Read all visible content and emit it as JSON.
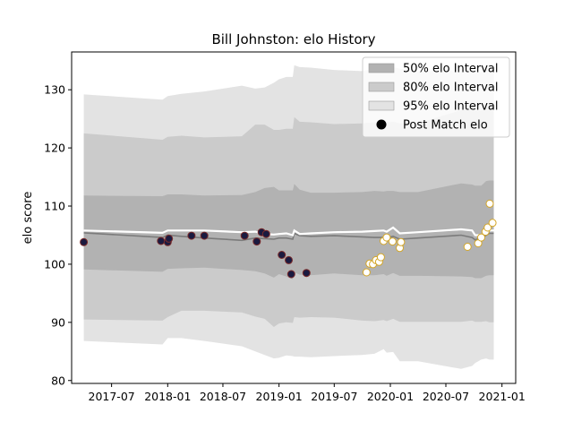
{
  "chart_data": {
    "type": "line",
    "title": "Bill Johnston: elo History",
    "xlabel": "",
    "ylabel": "elo score",
    "x_ticks": [
      "2017-07",
      "2018-01",
      "2018-07",
      "2019-01",
      "2019-07",
      "2020-01",
      "2020-07",
      "2021-01"
    ],
    "y_ticks": [
      80,
      90,
      100,
      110,
      120,
      130
    ],
    "ylim": [
      79.5,
      136.5
    ],
    "xlim": [
      "2017-02-20",
      "2021-02-15"
    ],
    "grid": false,
    "legend_position": "top-right",
    "legend": [
      {
        "label": "50% elo Interval",
        "color": "#b2b2b2"
      },
      {
        "label": "80% elo Interval",
        "color": "#cbcbcb"
      },
      {
        "label": "95% elo Interval",
        "color": "#e3e3e3"
      },
      {
        "label": "Post Match elo",
        "color": "#000000"
      }
    ],
    "bands": {
      "x": [
        "2017-04-01",
        "2017-12-15",
        "2018-01-01",
        "2018-02-15",
        "2018-05-01",
        "2018-09-01",
        "2018-10-15",
        "2018-11-15",
        "2018-12-15",
        "2019-01-01",
        "2019-01-25",
        "2019-02-15",
        "2019-02-20",
        "2019-03-10",
        "2019-04-15",
        "2019-07-01",
        "2019-10-01",
        "2019-11-10",
        "2019-12-10",
        "2019-12-20",
        "2020-01-10",
        "2020-02-01",
        "2020-04-01",
        "2020-08-20",
        "2020-09-25",
        "2020-10-05",
        "2020-10-25",
        "2020-11-10",
        "2020-11-20",
        "2020-12-05"
      ],
      "center": [
        105.8,
        105.4,
        105.8,
        105.8,
        105.8,
        105.5,
        105.6,
        105.2,
        105.1,
        105.2,
        105.3,
        105.0,
        105.8,
        105.2,
        105.3,
        105.5,
        105.6,
        105.7,
        105.8,
        105.6,
        106.3,
        105.3,
        105.5,
        106.0,
        105.8,
        105.0,
        105.0,
        105.6,
        105.8,
        105.8
      ],
      "mean": [
        105.4,
        104.6,
        105.0,
        104.8,
        104.5,
        104.1,
        104.5,
        104.4,
        104.3,
        104.5,
        104.5,
        104.3,
        105.3,
        104.9,
        104.8,
        104.9,
        104.7,
        104.6,
        104.6,
        104.5,
        104.8,
        104.3,
        104.5,
        105.0,
        104.6,
        104.2,
        104.5,
        105.0,
        105.3,
        105.3
      ],
      "p50": [
        [
          99.1,
          111.8
        ],
        [
          98.7,
          111.7
        ],
        [
          99.2,
          112.0
        ],
        [
          99.3,
          112.0
        ],
        [
          99.4,
          111.8
        ],
        [
          99.0,
          111.9
        ],
        [
          98.8,
          112.4
        ],
        [
          98.4,
          113.1
        ],
        [
          97.7,
          113.3
        ],
        [
          98.3,
          112.7
        ],
        [
          97.9,
          112.7
        ],
        [
          97.4,
          112.7
        ],
        [
          98.6,
          113.8
        ],
        [
          98.2,
          112.8
        ],
        [
          98.1,
          112.3
        ],
        [
          98.4,
          112.3
        ],
        [
          98.1,
          112.4
        ],
        [
          98.1,
          112.6
        ],
        [
          98.3,
          112.5
        ],
        [
          98.0,
          112.6
        ],
        [
          98.5,
          112.6
        ],
        [
          98.0,
          112.4
        ],
        [
          98.0,
          112.4
        ],
        [
          97.9,
          113.9
        ],
        [
          97.8,
          113.7
        ],
        [
          97.6,
          113.5
        ],
        [
          97.6,
          113.5
        ],
        [
          98.0,
          114.3
        ],
        [
          98.1,
          114.4
        ],
        [
          98.1,
          114.4
        ]
      ],
      "p80": [
        [
          90.5,
          122.5
        ],
        [
          90.3,
          121.4
        ],
        [
          90.9,
          121.9
        ],
        [
          92.0,
          122.1
        ],
        [
          92.0,
          121.8
        ],
        [
          91.7,
          122.0
        ],
        [
          91.0,
          124.0
        ],
        [
          90.6,
          124.0
        ],
        [
          89.2,
          123.1
        ],
        [
          89.8,
          123.1
        ],
        [
          90.0,
          123.3
        ],
        [
          89.9,
          123.3
        ],
        [
          90.9,
          125.3
        ],
        [
          90.8,
          124.5
        ],
        [
          90.9,
          124.4
        ],
        [
          90.8,
          124.1
        ],
        [
          90.3,
          124.2
        ],
        [
          90.2,
          124.4
        ],
        [
          90.4,
          124.2
        ],
        [
          90.2,
          124.4
        ],
        [
          90.6,
          124.5
        ],
        [
          90.1,
          124.2
        ],
        [
          90.1,
          124.2
        ],
        [
          90.1,
          126.5
        ],
        [
          90.3,
          126.7
        ],
        [
          90.1,
          126.4
        ],
        [
          90.1,
          126.4
        ],
        [
          90.2,
          126.9
        ],
        [
          90.0,
          126.9
        ],
        [
          90.0,
          126.9
        ]
      ],
      "p95": [
        [
          86.8,
          129.2
        ],
        [
          86.2,
          128.3
        ],
        [
          87.3,
          128.9
        ],
        [
          87.3,
          129.3
        ],
        [
          86.8,
          129.7
        ],
        [
          85.9,
          130.7
        ],
        [
          85.0,
          130.2
        ],
        [
          84.4,
          130.4
        ],
        [
          83.8,
          131.2
        ],
        [
          83.9,
          131.8
        ],
        [
          84.3,
          132.2
        ],
        [
          84.2,
          132.2
        ],
        [
          84.1,
          134.2
        ],
        [
          84.1,
          133.9
        ],
        [
          84.0,
          133.8
        ],
        [
          84.2,
          133.4
        ],
        [
          84.4,
          133.2
        ],
        [
          84.6,
          133.6
        ],
        [
          85.4,
          133.6
        ],
        [
          84.8,
          133.8
        ],
        [
          84.9,
          133.9
        ],
        [
          83.3,
          133.6
        ],
        [
          83.3,
          133.2
        ],
        [
          82.0,
          133.2
        ],
        [
          82.5,
          133.3
        ],
        [
          83.0,
          133.1
        ],
        [
          83.6,
          133.0
        ],
        [
          83.8,
          133.6
        ],
        [
          83.6,
          133.6
        ],
        [
          83.6,
          133.6
        ]
      ]
    },
    "series": [
      {
        "name": "Post Match elo",
        "marker_face": "#1a1a40",
        "marker_edge": "#7a2a2a",
        "x": [
          "2017-04-01",
          "2017-12-10",
          "2018-01-01",
          "2018-01-05",
          "2018-03-20",
          "2018-05-01",
          "2018-09-10",
          "2018-10-20",
          "2018-11-05",
          "2018-11-20",
          "2019-01-10",
          "2019-02-02",
          "2019-02-10",
          "2019-04-01"
        ],
        "y": [
          103.8,
          104.0,
          103.8,
          104.4,
          104.9,
          104.9,
          104.9,
          103.9,
          105.5,
          105.2,
          101.6,
          100.7,
          98.3,
          98.5
        ]
      },
      {
        "name": "Post Match elo",
        "marker_face": "#ffffff",
        "marker_edge": "#d4a628",
        "x": [
          "2019-10-15",
          "2019-10-25",
          "2019-11-05",
          "2019-11-15",
          "2019-11-25",
          "2019-12-01",
          "2019-12-10",
          "2019-12-20",
          "2020-01-08",
          "2020-02-01",
          "2020-02-05",
          "2020-09-10",
          "2020-10-15",
          "2020-10-25",
          "2020-11-08",
          "2020-11-15",
          "2020-11-22",
          "2020-12-01"
        ],
        "y": [
          98.6,
          100.1,
          100.0,
          100.7,
          100.4,
          101.2,
          104.0,
          104.6,
          103.9,
          102.8,
          103.8,
          103.0,
          103.6,
          104.6,
          105.6,
          106.3,
          110.4,
          107.1
        ]
      }
    ]
  }
}
